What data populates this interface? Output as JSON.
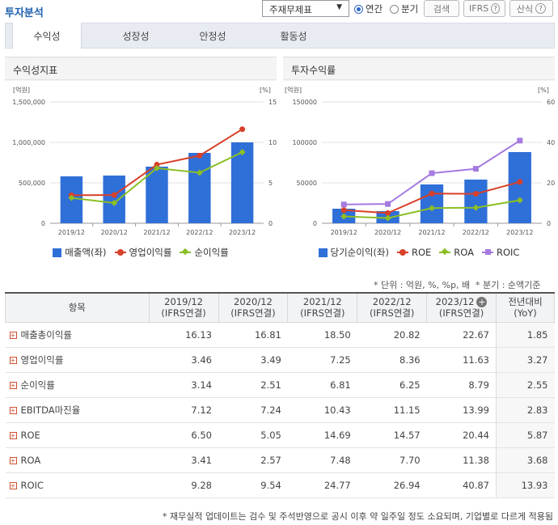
{
  "header": {
    "title": "투자분석",
    "statement_select": "주재무제표",
    "period_annual": "연간",
    "period_quarter": "분기",
    "search_btn": "검색",
    "ifrs_btn": "IFRS",
    "formula_btn": "산식",
    "help": "?"
  },
  "tabs": [
    "수익성",
    "성장성",
    "안정성",
    "활동성"
  ],
  "left_panel": {
    "title": "수익성지표"
  },
  "right_panel": {
    "title": "투자수익률"
  },
  "chart_data": [
    {
      "type": "bar",
      "title": "수익성지표",
      "categories": [
        "2019/12",
        "2020/12",
        "2021/12",
        "2022/12",
        "2023/12"
      ],
      "ylabel_left": "[억원]",
      "ylabel_right": "[%]",
      "ylim": [
        0,
        1500000
      ],
      "ylim_right": [
        0,
        15
      ],
      "yticks": [
        "1,500,000",
        "1,000,000",
        "500,000",
        "0"
      ],
      "yticks_right": [
        "15",
        "10",
        "5",
        "0"
      ],
      "series": [
        {
          "name": "매출액(좌)",
          "kind": "bar",
          "axis": "left",
          "color": "#2f6fd8",
          "values": [
            580000,
            590000,
            700000,
            870000,
            1000000
          ]
        },
        {
          "name": "영업이익률",
          "kind": "line",
          "axis": "right",
          "color": "#d8402a",
          "values": [
            3.46,
            3.49,
            7.25,
            8.36,
            11.63
          ]
        },
        {
          "name": "순이익률",
          "kind": "line",
          "axis": "right",
          "color": "#8cbf26",
          "values": [
            3.14,
            2.51,
            6.81,
            6.25,
            8.79
          ]
        }
      ]
    },
    {
      "type": "bar",
      "title": "투자수익률",
      "categories": [
        "2019/12",
        "2020/12",
        "2021/12",
        "2022/12",
        "2023/12"
      ],
      "ylabel_left": "[억원]",
      "ylabel_right": "[%]",
      "ylim": [
        0,
        150000
      ],
      "ylim_right": [
        0,
        60
      ],
      "yticks": [
        "150000",
        "100000",
        "50000",
        "0"
      ],
      "yticks_right": [
        "60",
        "40",
        "20",
        "0"
      ],
      "series": [
        {
          "name": "당기순이익(좌)",
          "kind": "bar",
          "axis": "left",
          "color": "#2f6fd8",
          "values": [
            18000,
            15000,
            48000,
            54000,
            88000
          ]
        },
        {
          "name": "ROE",
          "kind": "line",
          "axis": "right",
          "color": "#d8402a",
          "values": [
            6.5,
            5.05,
            14.69,
            14.57,
            20.44
          ]
        },
        {
          "name": "ROA",
          "kind": "line",
          "axis": "right",
          "color": "#8cbf26",
          "values": [
            3.41,
            2.57,
            7.48,
            7.7,
            11.38
          ]
        },
        {
          "name": "ROIC",
          "kind": "line",
          "axis": "right",
          "color": "#a57be0",
          "values": [
            9.28,
            9.54,
            24.77,
            26.94,
            40.87
          ]
        }
      ]
    }
  ],
  "notes": {
    "unit": "* 단위 : 억원, %, %p, 배",
    "quarter": "* 분기 : 순액기준",
    "footer": "* 재무실적 업데이트는 검수 및 주석반영으로 공시 이후 약 일주일 정도 소요되며, 기업별로 다르게 적용됨"
  },
  "table": {
    "col_item": "항목",
    "columns": [
      {
        "year": "2019/12",
        "basis": "(IFRS연결)"
      },
      {
        "year": "2020/12",
        "basis": "(IFRS연결)"
      },
      {
        "year": "2021/12",
        "basis": "(IFRS연결)"
      },
      {
        "year": "2022/12",
        "basis": "(IFRS연결)"
      },
      {
        "year": "2023/12",
        "basis": "(IFRS연결)"
      }
    ],
    "col_yoy": "전년대비",
    "col_yoy_sub": "(YoY)",
    "rows": [
      {
        "label": "매출총이익률",
        "values": [
          "16.13",
          "16.81",
          "18.50",
          "20.82",
          "22.67"
        ],
        "yoy": "1.85"
      },
      {
        "label": "영업이익률",
        "values": [
          "3.46",
          "3.49",
          "7.25",
          "8.36",
          "11.63"
        ],
        "yoy": "3.27"
      },
      {
        "label": "순이익률",
        "values": [
          "3.14",
          "2.51",
          "6.81",
          "6.25",
          "8.79"
        ],
        "yoy": "2.55"
      },
      {
        "label": "EBITDA마진율",
        "values": [
          "7.12",
          "7.24",
          "10.43",
          "11.15",
          "13.99"
        ],
        "yoy": "2.83"
      },
      {
        "label": "ROE",
        "values": [
          "6.50",
          "5.05",
          "14.69",
          "14.57",
          "20.44"
        ],
        "yoy": "5.87"
      },
      {
        "label": "ROA",
        "values": [
          "3.41",
          "2.57",
          "7.48",
          "7.70",
          "11.38"
        ],
        "yoy": "3.68"
      },
      {
        "label": "ROIC",
        "values": [
          "9.28",
          "9.54",
          "24.77",
          "26.94",
          "40.87"
        ],
        "yoy": "13.93"
      }
    ]
  }
}
